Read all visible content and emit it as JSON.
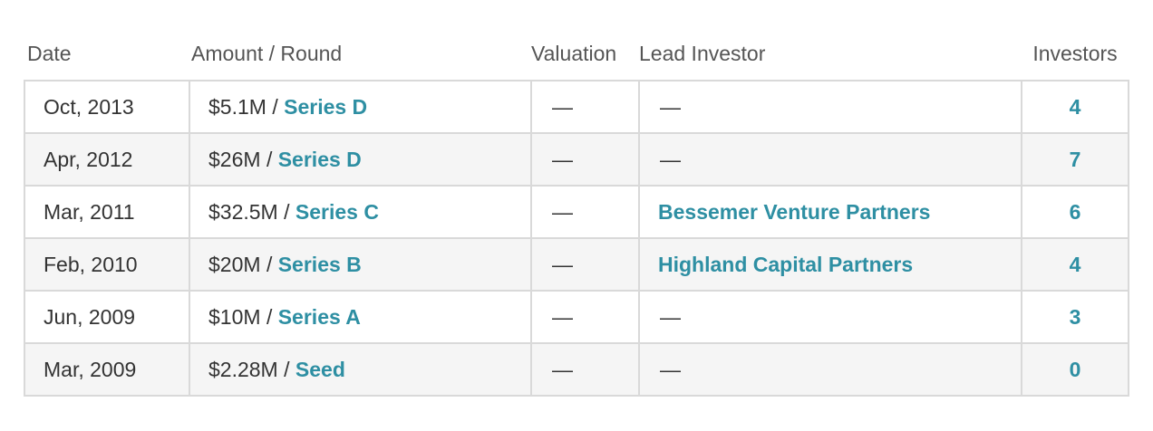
{
  "columns": {
    "date": "Date",
    "amount_round": "Amount / Round",
    "valuation": "Valuation",
    "lead_investor": "Lead Investor",
    "investors": "Investors"
  },
  "separator": "/",
  "rows": [
    {
      "date": "Oct, 2013",
      "amount": "$5.1M",
      "round": "Series D",
      "valuation": "—",
      "lead_investor": "—",
      "lead_is_link": false,
      "investors": "4"
    },
    {
      "date": "Apr, 2012",
      "amount": "$26M",
      "round": "Series D",
      "valuation": "—",
      "lead_investor": "—",
      "lead_is_link": false,
      "investors": "7"
    },
    {
      "date": "Mar, 2011",
      "amount": "$32.5M",
      "round": "Series C",
      "valuation": "—",
      "lead_investor": "Bessemer Venture Partners",
      "lead_is_link": true,
      "investors": "6"
    },
    {
      "date": "Feb, 2010",
      "amount": "$20M",
      "round": "Series B",
      "valuation": "—",
      "lead_investor": "Highland Capital Partners",
      "lead_is_link": true,
      "investors": "4"
    },
    {
      "date": "Jun, 2009",
      "amount": "$10M",
      "round": "Series A",
      "valuation": "—",
      "lead_investor": "—",
      "lead_is_link": false,
      "investors": "3"
    },
    {
      "date": "Mar, 2009",
      "amount": "$2.28M",
      "round": "Seed",
      "valuation": "—",
      "lead_investor": "—",
      "lead_is_link": false,
      "investors": "0"
    }
  ],
  "colors": {
    "link": "#2e8fa3",
    "text": "#333333",
    "header_text": "#555555",
    "border": "#d9d9d9",
    "row_alt": "#f5f5f5"
  }
}
